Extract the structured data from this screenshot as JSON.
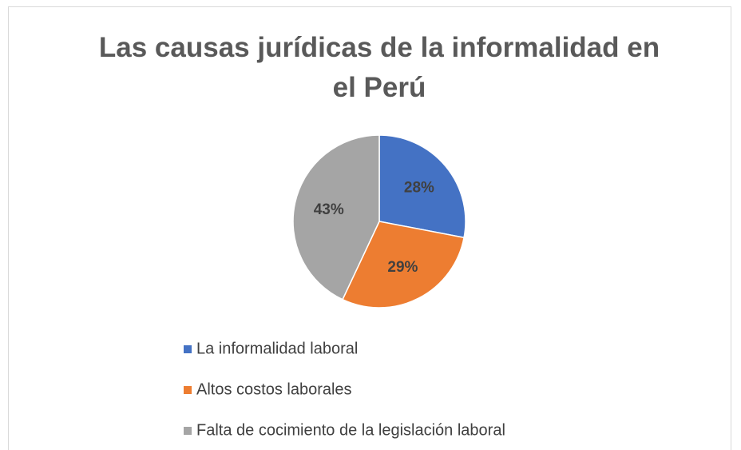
{
  "chart_data": {
    "type": "pie",
    "title": "Las causas jurídicas de la informalidad en el Perú",
    "categories": [
      "La informalidad laboral",
      "Altos costos laborales",
      "Falta de cocimiento de la legislación laboral"
    ],
    "values": [
      28,
      29,
      43
    ],
    "value_labels": [
      "28%",
      "29%",
      "43%"
    ],
    "colors": [
      "#4472c4",
      "#ed7d31",
      "#a5a5a5"
    ],
    "legend": "bottom"
  }
}
